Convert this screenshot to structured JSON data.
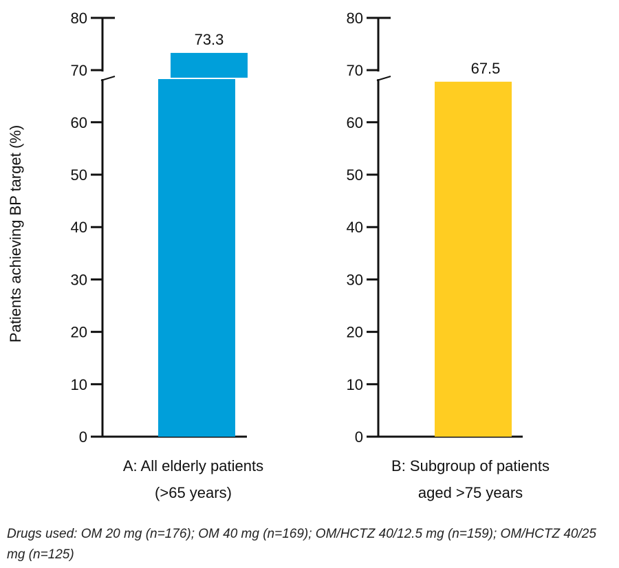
{
  "chart_data": {
    "type": "bar",
    "ylabel": "Patients achieving BP target (%)",
    "ylim": [
      0,
      80
    ],
    "axis_break": [
      68,
      70
    ],
    "yticks": [
      0,
      10,
      20,
      30,
      40,
      50,
      60,
      70,
      80
    ],
    "panels": [
      {
        "id": "A",
        "category_lines": [
          "A:  All elderly patients",
          "(>65 years)"
        ],
        "value": 73.3,
        "value_label": "73.3",
        "color": "#009fda"
      },
      {
        "id": "B",
        "category_lines": [
          "B:  Subgroup of patients",
          "aged >75 years"
        ],
        "value": 67.5,
        "value_label": "67.5",
        "color": "#ffcd22"
      }
    ]
  },
  "footnote": "Drugs used: OM 20 mg (n=176); OM 40 mg (n=169); OM/HCTZ 40/12.5 mg (n=159); OM/HCTZ 40/25 mg (n=125)"
}
